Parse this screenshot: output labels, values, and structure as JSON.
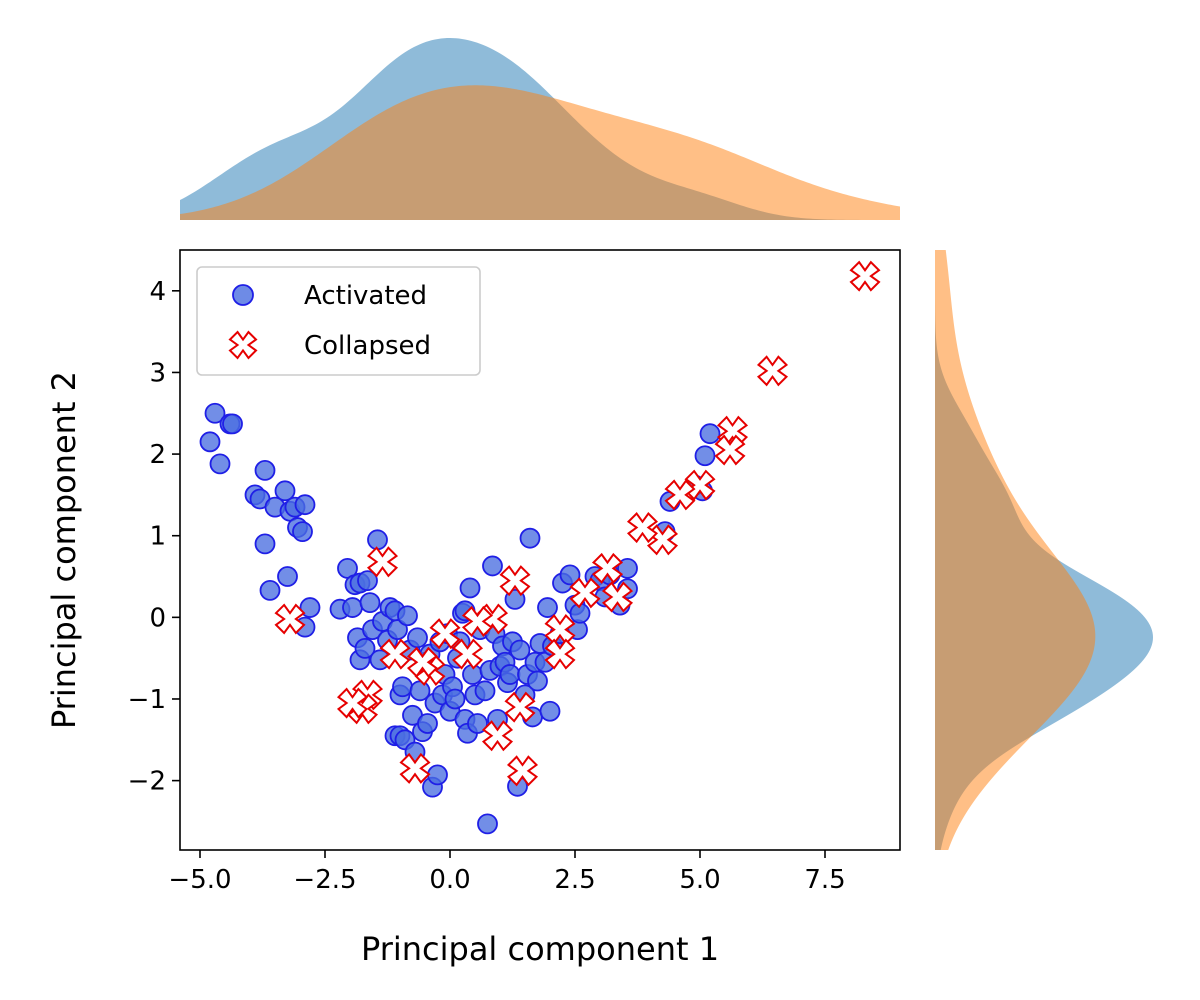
{
  "chart_data": {
    "type": "scatter",
    "title": "",
    "xlabel": "Principal component 1",
    "ylabel": "Principal component 2",
    "xlim": [
      -5.4,
      9.0
    ],
    "ylim": [
      -2.85,
      4.5
    ],
    "xticks": [
      -5.0,
      -2.5,
      0.0,
      2.5,
      5.0,
      7.5
    ],
    "xtick_labels": [
      "−5.0",
      "−2.5",
      "0.0",
      "2.5",
      "5.0",
      "7.5"
    ],
    "yticks": [
      -2,
      -1,
      0,
      1,
      2,
      3,
      4
    ],
    "ytick_labels": [
      "−2",
      "−1",
      "0",
      "1",
      "2",
      "3",
      "4"
    ],
    "grid": false,
    "legend_position": "upper-left",
    "series": [
      {
        "name": "Activated",
        "marker": "circle",
        "color": "#1f1fe6",
        "fill": "#4a6ee0",
        "kde_color": "#1f77b4",
        "points": [
          [
            -4.7,
            2.5
          ],
          [
            -4.8,
            2.15
          ],
          [
            -4.6,
            1.88
          ],
          [
            -4.4,
            2.37
          ],
          [
            -4.35,
            2.37
          ],
          [
            -3.9,
            1.5
          ],
          [
            -3.8,
            1.45
          ],
          [
            -3.7,
            1.8
          ],
          [
            -3.5,
            1.35
          ],
          [
            -3.3,
            1.55
          ],
          [
            -3.2,
            1.3
          ],
          [
            -3.1,
            1.35
          ],
          [
            -3.05,
            1.1
          ],
          [
            -2.95,
            1.05
          ],
          [
            -2.9,
            1.38
          ],
          [
            -3.7,
            0.9
          ],
          [
            -3.6,
            0.33
          ],
          [
            -3.25,
            0.5
          ],
          [
            -2.9,
            -0.12
          ],
          [
            -2.8,
            0.12
          ],
          [
            -2.2,
            0.1
          ],
          [
            -2.05,
            0.6
          ],
          [
            -1.95,
            0.12
          ],
          [
            -1.9,
            0.4
          ],
          [
            -1.8,
            0.42
          ],
          [
            -1.85,
            -0.25
          ],
          [
            -1.8,
            -0.52
          ],
          [
            -1.7,
            -0.38
          ],
          [
            -1.65,
            0.45
          ],
          [
            -1.6,
            0.18
          ],
          [
            -1.55,
            -0.15
          ],
          [
            -1.45,
            0.95
          ],
          [
            -1.4,
            -0.52
          ],
          [
            -1.35,
            -0.05
          ],
          [
            -1.25,
            -0.28
          ],
          [
            -1.2,
            0.12
          ],
          [
            -1.1,
            0.08
          ],
          [
            -1.05,
            -0.15
          ],
          [
            -1.1,
            -1.45
          ],
          [
            -1.0,
            -1.45
          ],
          [
            -1.0,
            -0.95
          ],
          [
            -0.95,
            -0.85
          ],
          [
            -0.9,
            -1.5
          ],
          [
            -0.85,
            0.02
          ],
          [
            -0.8,
            -0.4
          ],
          [
            -0.75,
            -1.2
          ],
          [
            -0.7,
            -1.65
          ],
          [
            -0.65,
            -0.25
          ],
          [
            -0.6,
            -0.9
          ],
          [
            -0.55,
            -1.4
          ],
          [
            -0.5,
            -0.55
          ],
          [
            -0.45,
            -1.3
          ],
          [
            -0.4,
            -0.45
          ],
          [
            -0.35,
            -2.08
          ],
          [
            -0.3,
            -1.05
          ],
          [
            -0.25,
            -1.93
          ],
          [
            -0.2,
            -0.3
          ],
          [
            -0.15,
            -0.95
          ],
          [
            -0.1,
            -0.7
          ],
          [
            -0.05,
            -0.2
          ],
          [
            0.0,
            -1.15
          ],
          [
            0.05,
            -0.85
          ],
          [
            0.1,
            -1.0
          ],
          [
            0.15,
            -0.5
          ],
          [
            0.2,
            -0.3
          ],
          [
            0.25,
            0.05
          ],
          [
            0.3,
            -1.25
          ],
          [
            0.3,
            0.08
          ],
          [
            0.35,
            -1.42
          ],
          [
            0.4,
            0.36
          ],
          [
            0.45,
            -0.7
          ],
          [
            0.5,
            -0.95
          ],
          [
            0.55,
            -1.3
          ],
          [
            0.6,
            -0.15
          ],
          [
            0.7,
            -0.9
          ],
          [
            0.75,
            -2.53
          ],
          [
            0.8,
            -0.65
          ],
          [
            0.85,
            0.63
          ],
          [
            0.9,
            -0.2
          ],
          [
            0.95,
            -1.25
          ],
          [
            1.0,
            -0.6
          ],
          [
            1.05,
            -0.35
          ],
          [
            1.1,
            -0.55
          ],
          [
            1.15,
            -0.8
          ],
          [
            1.2,
            -0.7
          ],
          [
            1.25,
            -0.3
          ],
          [
            1.3,
            0.22
          ],
          [
            1.35,
            -2.07
          ],
          [
            1.4,
            -0.4
          ],
          [
            1.5,
            -0.95
          ],
          [
            1.55,
            -0.7
          ],
          [
            1.6,
            0.97
          ],
          [
            1.65,
            -1.22
          ],
          [
            1.7,
            -0.55
          ],
          [
            1.75,
            -0.78
          ],
          [
            1.8,
            -0.32
          ],
          [
            1.9,
            -0.55
          ],
          [
            1.95,
            0.12
          ],
          [
            2.0,
            -1.15
          ],
          [
            2.05,
            -0.35
          ],
          [
            2.2,
            -0.2
          ],
          [
            2.25,
            0.42
          ],
          [
            2.4,
            0.52
          ],
          [
            2.5,
            0.15
          ],
          [
            2.55,
            -0.15
          ],
          [
            2.6,
            0.05
          ],
          [
            2.9,
            0.5
          ],
          [
            3.0,
            0.45
          ],
          [
            3.1,
            0.25
          ],
          [
            3.2,
            0.52
          ],
          [
            3.4,
            0.15
          ],
          [
            3.55,
            0.6
          ],
          [
            3.55,
            0.35
          ],
          [
            4.3,
            1.05
          ],
          [
            4.4,
            1.42
          ],
          [
            4.9,
            1.62
          ],
          [
            5.05,
            1.55
          ],
          [
            5.1,
            1.98
          ],
          [
            5.2,
            2.25
          ]
        ]
      },
      {
        "name": "Collapsed",
        "marker": "x-filled",
        "color": "#e60000",
        "fill": "#ffffff",
        "kde_color": "#ff7f0e",
        "points": [
          [
            8.3,
            4.18
          ],
          [
            6.45,
            3.02
          ],
          [
            5.65,
            2.28
          ],
          [
            5.6,
            2.05
          ],
          [
            5.0,
            1.62
          ],
          [
            4.6,
            1.5
          ],
          [
            4.25,
            0.95
          ],
          [
            3.85,
            1.1
          ],
          [
            3.35,
            0.25
          ],
          [
            3.15,
            0.6
          ],
          [
            2.7,
            0.3
          ],
          [
            2.2,
            -0.15
          ],
          [
            2.2,
            -0.45
          ],
          [
            1.3,
            0.45
          ],
          [
            1.4,
            -1.1
          ],
          [
            1.45,
            -1.88
          ],
          [
            0.85,
            -0.02
          ],
          [
            0.95,
            -1.45
          ],
          [
            0.55,
            -0.05
          ],
          [
            0.35,
            -0.45
          ],
          [
            -0.1,
            -0.2
          ],
          [
            -0.4,
            -0.65
          ],
          [
            -0.55,
            -0.55
          ],
          [
            -0.7,
            -1.85
          ],
          [
            -1.1,
            -0.45
          ],
          [
            -1.35,
            0.68
          ],
          [
            -1.65,
            -0.95
          ],
          [
            -1.75,
            -1.12
          ],
          [
            -1.95,
            -1.05
          ],
          [
            -3.2,
            -0.02
          ]
        ]
      }
    ]
  }
}
